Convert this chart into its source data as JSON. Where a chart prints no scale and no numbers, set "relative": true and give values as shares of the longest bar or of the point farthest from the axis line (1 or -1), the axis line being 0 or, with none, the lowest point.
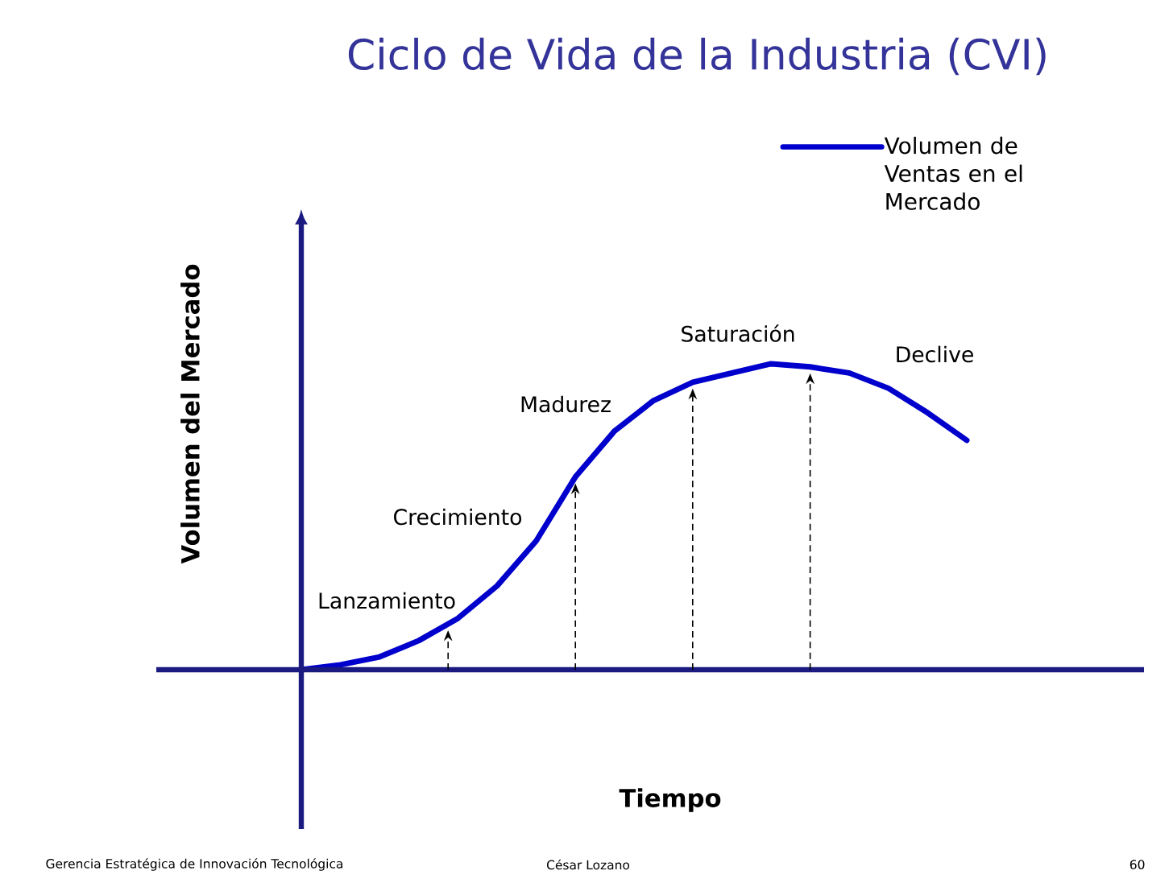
{
  "chart_data": {
    "type": "line",
    "title": "Ciclo de Vida de la Industria (CVI)",
    "xlabel": "Tiempo",
    "ylabel": "Volumen del Mercado",
    "relative": true,
    "categories": [
      null,
      null,
      null,
      null,
      null,
      null,
      null,
      null,
      null,
      null,
      null,
      null,
      null,
      null,
      null,
      null,
      null,
      null
    ],
    "series": [
      {
        "name": "Volumen de Ventas en el Mercado",
        "color": "#0000cc",
        "values": [
          0,
          0.016,
          0.042,
          0.095,
          0.168,
          0.274,
          0.421,
          0.63,
          0.78,
          0.88,
          0.94,
          0.97,
          1.0,
          0.99,
          0.97,
          0.92,
          0.84,
          0.75
        ]
      }
    ],
    "legend": "top right",
    "marker": "none",
    "line_style": "solid",
    "annotations": [
      "Lanzamiento",
      "Crecimiento",
      "Madurez",
      "Saturación",
      "Declive",
      "Gerencia Estratégica de Innovación Tecnológica",
      "César Lozano",
      "60"
    ]
  }
}
